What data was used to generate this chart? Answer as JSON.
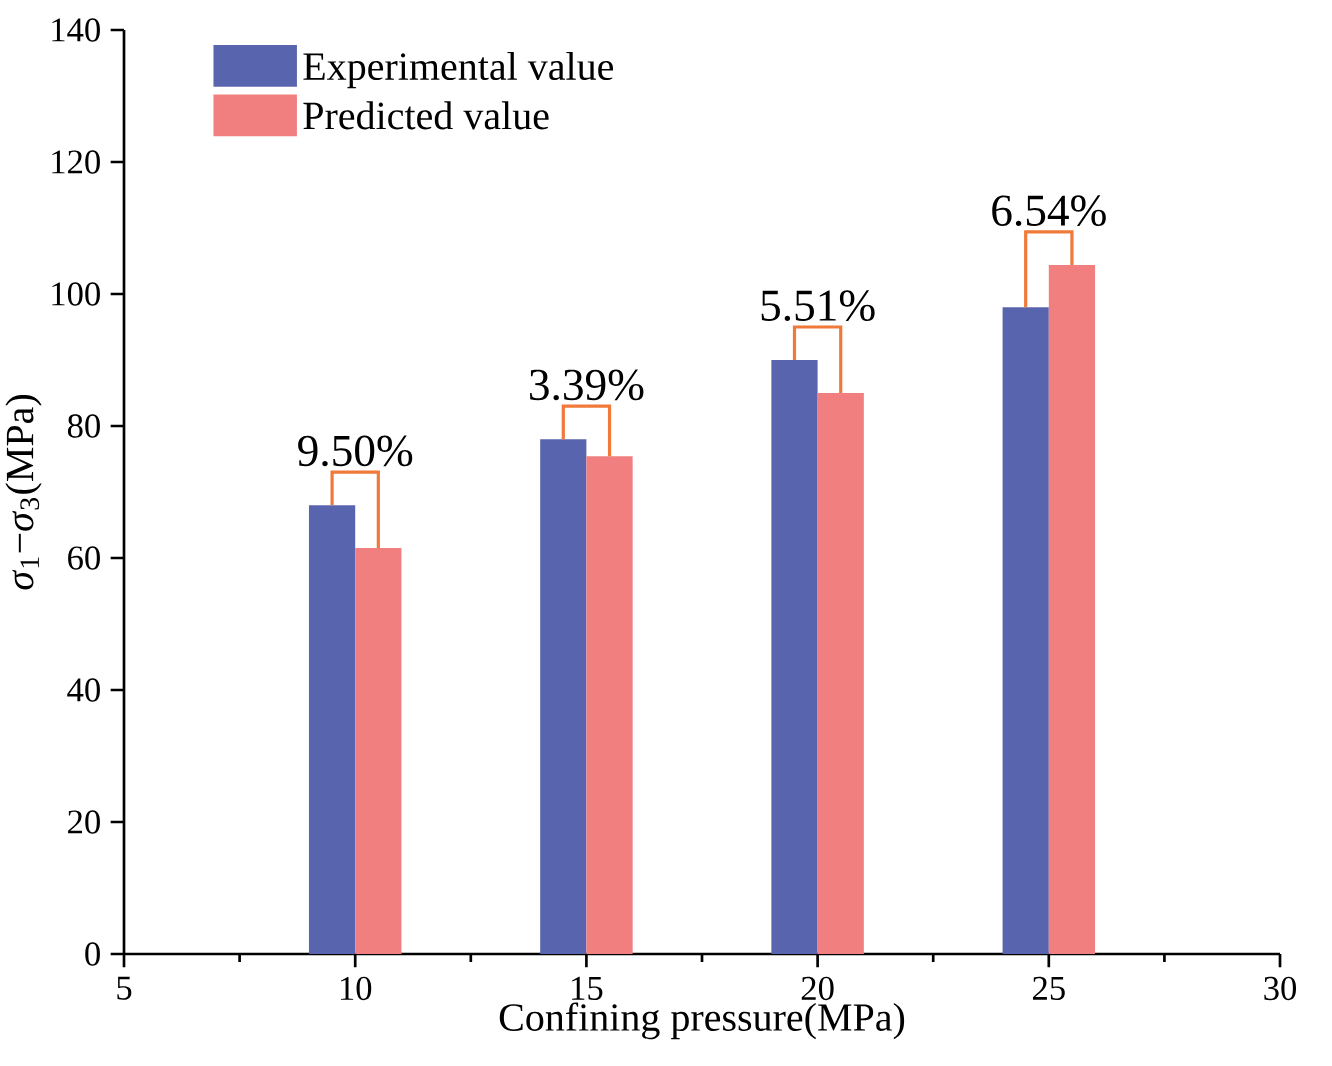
{
  "chart_data": {
    "type": "bar",
    "xlabel": "Confining pressure(MPa)",
    "ylabel": "*σ*$_{1}$−*σ*$_{3}$(MPa)",
    "x": [
      10,
      15,
      20,
      25
    ],
    "series": [
      {
        "name": "Experimental value",
        "color": "#5865ae",
        "values": [
          68,
          78,
          90,
          98
        ]
      },
      {
        "name": "Predicted value",
        "color": "#f17f7f",
        "values": [
          61.5,
          75.4,
          85,
          104.4
        ]
      }
    ],
    "annotations": [
      "9.50%",
      "3.39%",
      "5.51%",
      "6.54%"
    ],
    "xlim": [
      5,
      30
    ],
    "xticks": [
      5,
      10,
      15,
      20,
      25,
      30
    ],
    "ylim": [
      0,
      140
    ],
    "yticks": [
      0,
      20,
      40,
      60,
      80,
      100,
      120,
      140
    ],
    "legend": "top left",
    "grid": false
  }
}
